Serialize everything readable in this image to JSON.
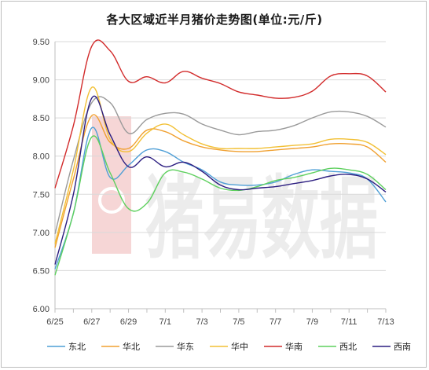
{
  "chart_data": {
    "type": "line",
    "title": "各大区域近半月猪价走势图(单位:元/斤)",
    "xlabel": "",
    "ylabel": "",
    "ylim": [
      6.0,
      9.5
    ],
    "yticks": [
      "6.00",
      "6.50",
      "7.00",
      "7.50",
      "8.00",
      "8.50",
      "9.00",
      "9.50"
    ],
    "x": [
      "6/25",
      "6/26",
      "6/27",
      "6/28",
      "6/29",
      "6/30",
      "7/1",
      "7/2",
      "7/3",
      "7/4",
      "7/5",
      "7/6",
      "7/7",
      "7/8",
      "7/9",
      "7/10",
      "7/11",
      "7/12",
      "7/13"
    ],
    "xtick_labels": [
      "6/25",
      "6/27",
      "6/29",
      "7/1",
      "7/3",
      "7/5",
      "7/7",
      "7/9",
      "7/11",
      "7/13"
    ],
    "grid": true,
    "legend_position": "bottom",
    "watermark": "猪易数据",
    "series": [
      {
        "name": "东北",
        "color": "#4f9fd6",
        "values": [
          6.52,
          7.25,
          8.37,
          7.72,
          7.88,
          8.08,
          8.06,
          7.92,
          7.82,
          7.66,
          7.62,
          7.62,
          7.66,
          7.76,
          7.82,
          7.8,
          7.78,
          7.7,
          7.4
        ]
      },
      {
        "name": "华北",
        "color": "#f0a030",
        "values": [
          6.8,
          7.7,
          8.53,
          8.18,
          8.1,
          8.34,
          8.32,
          8.2,
          8.12,
          8.08,
          8.06,
          8.06,
          8.08,
          8.1,
          8.12,
          8.16,
          8.16,
          8.12,
          7.92
        ]
      },
      {
        "name": "华东",
        "color": "#9a9a9a",
        "values": [
          6.98,
          7.95,
          8.7,
          8.7,
          8.3,
          8.48,
          8.56,
          8.55,
          8.42,
          8.34,
          8.28,
          8.32,
          8.34,
          8.4,
          8.5,
          8.58,
          8.58,
          8.52,
          8.38
        ]
      },
      {
        "name": "华中",
        "color": "#f2c035",
        "values": [
          6.85,
          7.82,
          8.9,
          8.22,
          8.06,
          8.3,
          8.42,
          8.28,
          8.16,
          8.1,
          8.1,
          8.1,
          8.12,
          8.14,
          8.16,
          8.22,
          8.22,
          8.18,
          8.02
        ]
      },
      {
        "name": "华南",
        "color": "#d22b2b",
        "values": [
          7.58,
          8.4,
          9.44,
          9.38,
          8.98,
          9.04,
          8.96,
          9.11,
          9.02,
          8.95,
          8.84,
          8.8,
          8.76,
          8.77,
          8.85,
          9.05,
          9.08,
          9.05,
          8.84
        ]
      },
      {
        "name": "西北",
        "color": "#5ed05e",
        "values": [
          6.44,
          7.25,
          8.25,
          7.78,
          7.31,
          7.38,
          7.78,
          7.79,
          7.7,
          7.58,
          7.55,
          7.6,
          7.68,
          7.72,
          7.78,
          7.84,
          7.82,
          7.76,
          7.56
        ]
      },
      {
        "name": "西南",
        "color": "#2b1d80",
        "values": [
          6.58,
          7.5,
          8.76,
          8.28,
          7.86,
          7.99,
          7.86,
          7.92,
          7.8,
          7.62,
          7.56,
          7.58,
          7.6,
          7.64,
          7.68,
          7.74,
          7.76,
          7.7,
          7.53
        ]
      }
    ]
  }
}
